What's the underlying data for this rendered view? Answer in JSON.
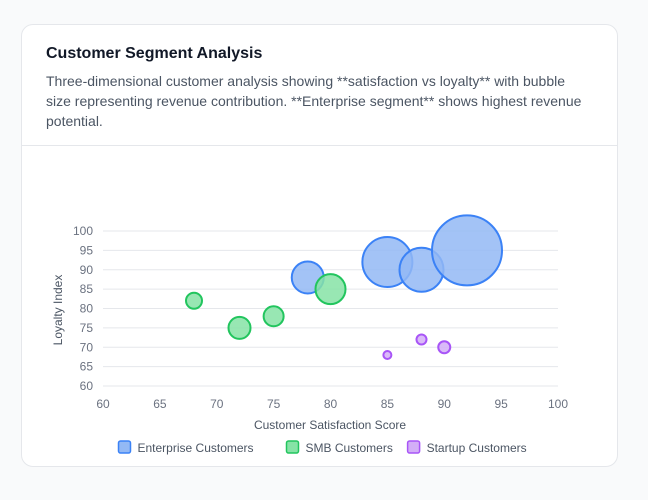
{
  "card": {
    "title": "Customer Segment Analysis",
    "description": "Three-dimensional customer analysis showing **satisfaction vs loyalty** with bubble size representing revenue contribution. **Enterprise segment** shows highest revenue potential."
  },
  "chart_data": {
    "type": "scatter",
    "variant": "bubble",
    "xlabel": "Customer Satisfaction Score",
    "ylabel": "Loyalty Index",
    "xlim": [
      60,
      100
    ],
    "ylim": [
      60,
      100
    ],
    "xticks": [
      60,
      65,
      70,
      75,
      80,
      85,
      90,
      95,
      100
    ],
    "yticks": [
      60,
      65,
      70,
      75,
      80,
      85,
      90,
      95,
      100
    ],
    "grid": "horizontal",
    "legend": "bottom",
    "size_note_unit": "relative revenue (bubble radius)",
    "series": [
      {
        "name": "Enterprise Customers",
        "fill": "#93b9f5",
        "stroke": "#3b82f6",
        "points": [
          {
            "x": 78,
            "y": 88,
            "r": 16
          },
          {
            "x": 85,
            "y": 92,
            "r": 25
          },
          {
            "x": 88,
            "y": 90,
            "r": 22
          },
          {
            "x": 92,
            "y": 95,
            "r": 35
          }
        ]
      },
      {
        "name": "SMB Customers",
        "fill": "#86e3a6",
        "stroke": "#22c55e",
        "points": [
          {
            "x": 68,
            "y": 82,
            "r": 8
          },
          {
            "x": 72,
            "y": 75,
            "r": 11
          },
          {
            "x": 75,
            "y": 78,
            "r": 10
          },
          {
            "x": 80,
            "y": 85,
            "r": 15
          }
        ]
      },
      {
        "name": "Startup Customers",
        "fill": "#d3aef7",
        "stroke": "#a855f7",
        "points": [
          {
            "x": 85,
            "y": 68,
            "r": 4
          },
          {
            "x": 88,
            "y": 72,
            "r": 5
          },
          {
            "x": 90,
            "y": 70,
            "r": 6
          }
        ]
      }
    ]
  }
}
